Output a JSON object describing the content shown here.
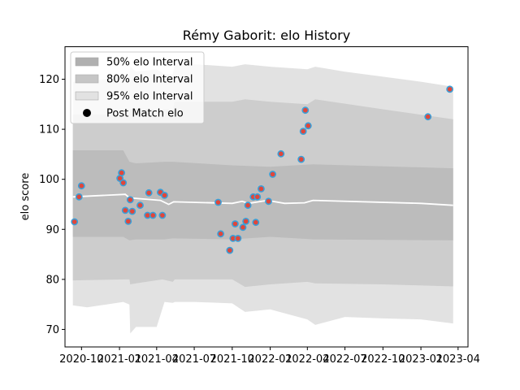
{
  "chart_data": {
    "type": "line",
    "title": "Rémy Gaborit: elo History",
    "xlabel": "",
    "ylabel": "elo score",
    "xlim": [
      "2020-08-22",
      "2023-04-25"
    ],
    "ylim": [
      66.5,
      126.5
    ],
    "x_ticks": [
      {
        "date": "2020-10-01",
        "label": "2020-10"
      },
      {
        "date": "2021-01-01",
        "label": "2021-01"
      },
      {
        "date": "2021-04-01",
        "label": "2021-04"
      },
      {
        "date": "2021-07-01",
        "label": "2021-07"
      },
      {
        "date": "2021-10-01",
        "label": "2021-10"
      },
      {
        "date": "2022-01-01",
        "label": "2022-01"
      },
      {
        "date": "2022-04-01",
        "label": "2022-04"
      },
      {
        "date": "2022-07-01",
        "label": "2022-07"
      },
      {
        "date": "2022-10-01",
        "label": "2022-10"
      },
      {
        "date": "2023-01-01",
        "label": "2023-01"
      },
      {
        "date": "2023-04-01",
        "label": "2023-04"
      }
    ],
    "y_ticks": [
      70,
      80,
      90,
      100,
      110,
      120
    ],
    "grid": false,
    "legend_position": "top-left",
    "legend": [
      {
        "label": "50% elo Interval",
        "kind": "band",
        "color": "#b0b0b0"
      },
      {
        "label": "80% elo Interval",
        "kind": "band",
        "color": "#c6c6c6"
      },
      {
        "label": "95% elo Interval",
        "kind": "band",
        "color": "#e2e2e2"
      },
      {
        "label": "Post Match elo",
        "kind": "marker",
        "color": "#000000"
      }
    ],
    "mean_line": {
      "color": "#ffffff",
      "x": [
        "2020-09-10",
        "2021-01-15",
        "2021-01-25",
        "2021-04-10",
        "2021-04-30",
        "2021-05-12",
        "2021-10-01",
        "2021-10-25",
        "2021-11-10",
        "2021-12-25",
        "2022-02-05",
        "2022-03-25",
        "2022-04-15",
        "2023-01-01",
        "2023-03-20"
      ],
      "y": [
        96.5,
        97.0,
        96.3,
        95.8,
        95.0,
        95.5,
        95.2,
        95.6,
        95.2,
        95.8,
        95.2,
        95.3,
        95.8,
        95.2,
        94.8
      ]
    },
    "bands": [
      {
        "name": "95% elo Interval",
        "color": "#e2e2e2",
        "x": [
          "2020-09-10",
          "2020-10-15",
          "2021-01-10",
          "2021-01-25",
          "2021-01-27",
          "2021-02-10",
          "2021-04-01",
          "2021-04-20",
          "2021-05-10",
          "2021-05-15",
          "2021-07-01",
          "2021-10-01",
          "2021-11-01",
          "2022-01-01",
          "2022-04-01",
          "2022-04-20",
          "2022-07-01",
          "2022-10-01",
          "2023-01-01",
          "2023-03-20"
        ],
        "upper": [
          119.5,
          119.5,
          120.5,
          120.5,
          122.5,
          121.5,
          122.0,
          121.0,
          121.0,
          123.0,
          123.0,
          122.5,
          123.0,
          122.5,
          122.0,
          122.5,
          121.5,
          120.5,
          119.5,
          118.5
        ],
        "lower": [
          74.8,
          74.4,
          75.5,
          75.0,
          69.2,
          70.5,
          70.5,
          75.5,
          75.3,
          75.5,
          75.5,
          75.2,
          73.5,
          74.0,
          72.0,
          70.9,
          72.5,
          72.2,
          72.0,
          71.2
        ]
      },
      {
        "name": "80% elo Interval",
        "color": "#cdcdcd",
        "x": [
          "2020-09-10",
          "2021-01-15",
          "2021-01-25",
          "2021-01-27",
          "2021-02-10",
          "2021-04-15",
          "2021-05-10",
          "2021-05-15",
          "2021-10-01",
          "2021-11-01",
          "2022-01-01",
          "2022-04-01",
          "2022-04-20",
          "2022-10-01",
          "2023-03-20"
        ],
        "upper": [
          113.0,
          113.0,
          113.0,
          114.0,
          114.2,
          114.0,
          114.0,
          115.5,
          115.5,
          116.0,
          115.5,
          115.0,
          116.0,
          114.0,
          112.0
        ],
        "lower": [
          79.8,
          80.0,
          80.0,
          79.0,
          79.2,
          80.0,
          79.5,
          80.0,
          80.0,
          78.5,
          79.0,
          79.5,
          79.2,
          79.0,
          78.6
        ]
      },
      {
        "name": "50% elo Interval",
        "color": "#bcbcbc",
        "x": [
          "2020-09-10",
          "2021-01-10",
          "2021-01-25",
          "2021-02-10",
          "2021-04-20",
          "2021-05-10",
          "2021-10-01",
          "2022-01-01",
          "2022-04-15",
          "2023-03-20"
        ],
        "upper": [
          105.8,
          105.8,
          103.5,
          103.2,
          103.5,
          103.5,
          102.8,
          102.5,
          103.0,
          102.2
        ],
        "lower": [
          88.5,
          88.5,
          87.8,
          88.0,
          88.0,
          88.2,
          88.0,
          88.5,
          88.0,
          87.8
        ]
      }
    ],
    "series": [
      {
        "name": "Post Match elo",
        "marker_fill": "#e0463a",
        "marker_edge": "#3a9fd8",
        "x": [
          "2020-09-14",
          "2020-09-25",
          "2020-10-01",
          "2021-01-02",
          "2021-01-06",
          "2021-01-10",
          "2021-01-15",
          "2021-01-22",
          "2021-01-27",
          "2021-02-01",
          "2021-02-20",
          "2021-03-10",
          "2021-03-13",
          "2021-03-23",
          "2021-04-10",
          "2021-04-15",
          "2021-04-20",
          "2021-08-28",
          "2021-09-03",
          "2021-09-25",
          "2021-10-03",
          "2021-10-08",
          "2021-10-15",
          "2021-10-27",
          "2021-11-03",
          "2021-11-08",
          "2021-11-21",
          "2021-11-27",
          "2021-12-01",
          "2021-12-10",
          "2021-12-28",
          "2022-01-07",
          "2022-01-27",
          "2022-03-17",
          "2022-03-22",
          "2022-03-27",
          "2022-04-03",
          "2023-01-18",
          "2023-03-12"
        ],
        "y": [
          91.5,
          96.5,
          98.7,
          100.2,
          101.3,
          99.3,
          93.8,
          91.6,
          95.9,
          93.6,
          94.8,
          92.8,
          97.3,
          92.8,
          97.4,
          92.8,
          96.8,
          95.4,
          89.1,
          85.8,
          88.2,
          91.1,
          88.2,
          90.4,
          91.6,
          94.8,
          96.5,
          91.4,
          96.5,
          98.1,
          95.6,
          101.0,
          105.1,
          104.0,
          109.6,
          113.8,
          110.7,
          112.5,
          118.0
        ]
      }
    ]
  }
}
